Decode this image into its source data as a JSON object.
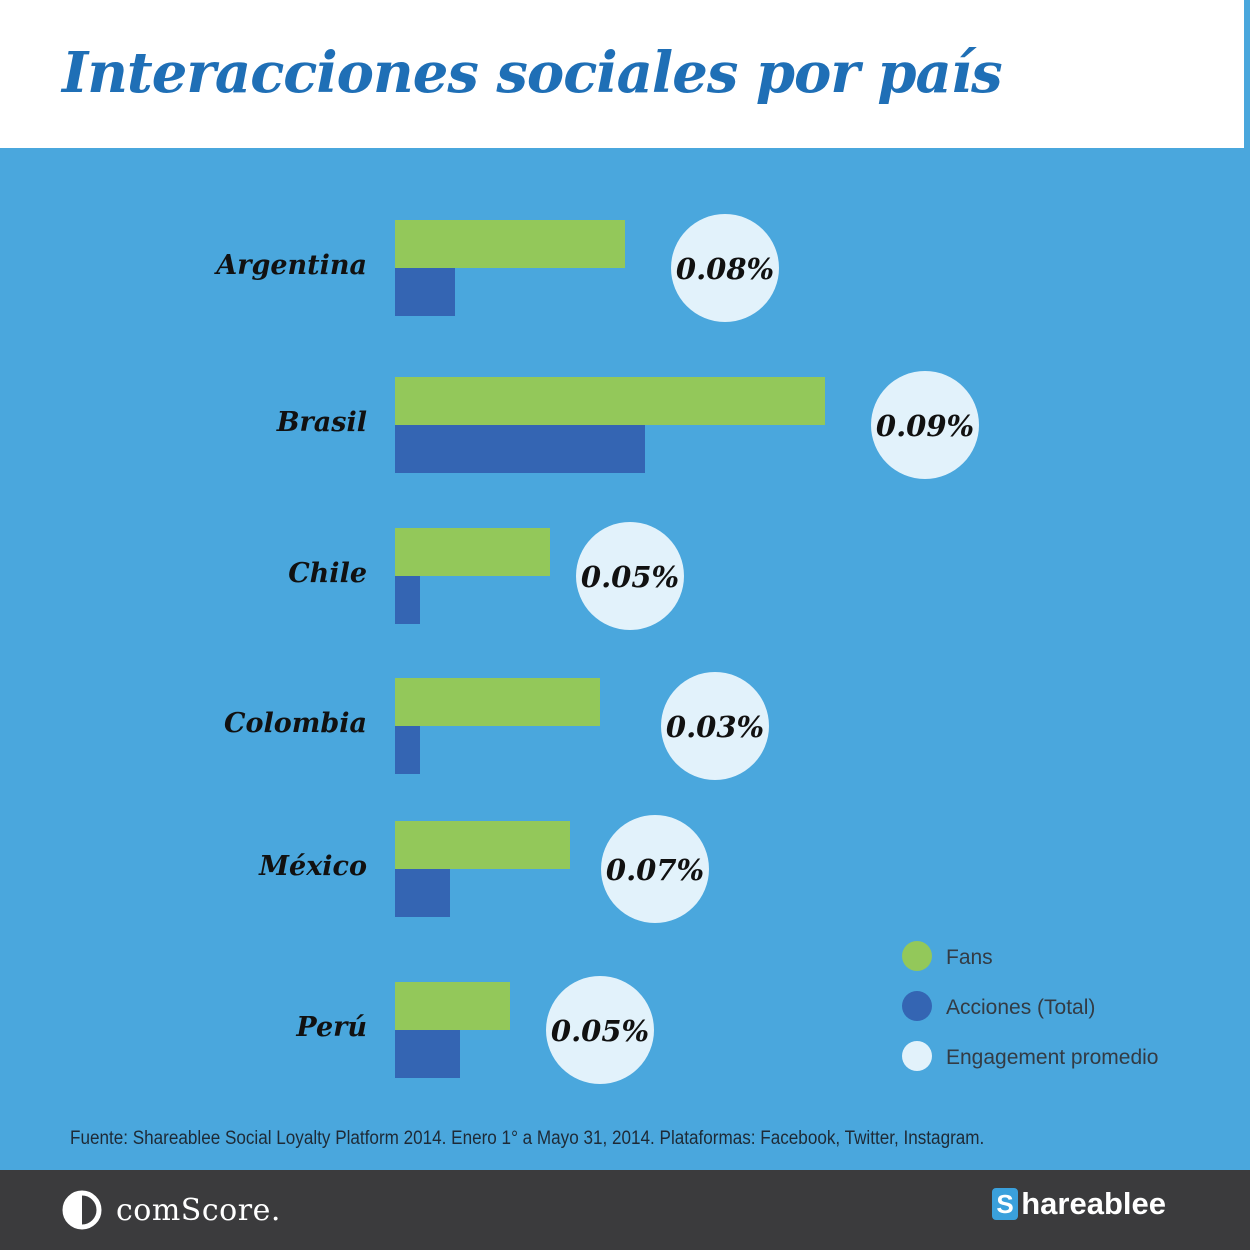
{
  "title": "Interacciones sociales por país",
  "chart_data": {
    "type": "bar",
    "orientation": "horizontal",
    "categories": [
      "Argentina",
      "Brasil",
      "Chile",
      "Colombia",
      "México",
      "Perú"
    ],
    "series": [
      {
        "name": "Fans",
        "values": [
          46,
          86,
          31,
          41,
          35,
          23
        ],
        "color": "#93c85a"
      },
      {
        "name": "Acciones (Total)",
        "values": [
          12,
          50,
          5,
          5,
          11,
          13
        ],
        "color": "#3465b3"
      }
    ],
    "engagement": {
      "name": "Engagement promedio",
      "labels": [
        "0.08%",
        "0.09%",
        "0.05%",
        "0.03%",
        "0.07%",
        "0.05%"
      ],
      "color": "#e2f2fb"
    },
    "xlim": [
      0,
      100
    ],
    "grid": false,
    "legend_position": "bottom-right"
  },
  "source": "Fuente: Shareablee Social Loyalty Platform 2014. Enero 1° a Mayo 31, 2014. Plataformas: Facebook, Twitter, Instagram.",
  "footer": {
    "comscore": "comScore.",
    "shareablee_initial": "S",
    "shareablee_rest": "hareablee"
  },
  "colors": {
    "background": "#4aa7dd",
    "title": "#1f6fb6",
    "footer": "#3b3b3d"
  }
}
